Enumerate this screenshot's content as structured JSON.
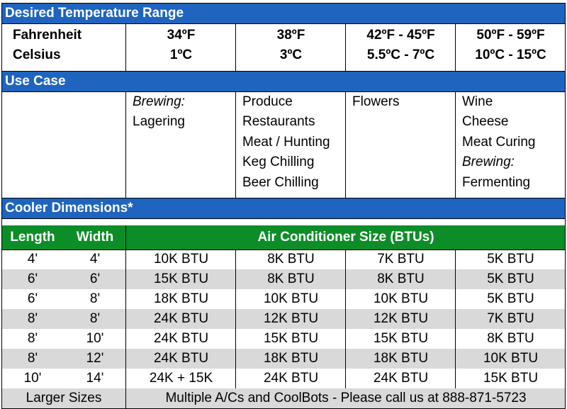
{
  "section_temp": "Desired Temperature Range",
  "temp": {
    "row_labels": [
      "Fahrenheit",
      "Celsius"
    ],
    "columns": [
      {
        "f": "34ºF",
        "c": "1ºC"
      },
      {
        "f": "38ºF",
        "c": "3ºC"
      },
      {
        "f": "42ºF - 45ºF",
        "c": "5.5ºC - 7ºC"
      },
      {
        "f": "50ºF - 59ºF",
        "c": "10ºC - 15ºC"
      }
    ]
  },
  "section_use": "Use Case",
  "use_cases": [
    [
      {
        "text": "Brewing:",
        "italic": true
      },
      {
        "text": "Lagering",
        "italic": false
      }
    ],
    [
      {
        "text": "Produce",
        "italic": false
      },
      {
        "text": "Restaurants",
        "italic": false
      },
      {
        "text": "Meat / Hunting",
        "italic": false
      },
      {
        "text": "Keg Chilling",
        "italic": false
      },
      {
        "text": "Beer Chilling",
        "italic": false
      }
    ],
    [
      {
        "text": "Flowers",
        "italic": false
      }
    ],
    [
      {
        "text": "Wine",
        "italic": false
      },
      {
        "text": "Cheese",
        "italic": false
      },
      {
        "text": "Meat Curing",
        "italic": false
      },
      {
        "text": "Brewing:",
        "italic": true
      },
      {
        "text": "Fermenting",
        "italic": false
      }
    ]
  ],
  "section_dims": "Cooler Dimensions*",
  "dims_header": {
    "length": "Length",
    "width": "Width",
    "ac": "Air Conditioner Size (BTUs)"
  },
  "dims_rows": [
    {
      "length": "4'",
      "width": "4'",
      "btu": [
        "10K BTU",
        "8K BTU",
        "7K BTU",
        "5K BTU"
      ]
    },
    {
      "length": "6'",
      "width": "6'",
      "btu": [
        "15K BTU",
        "8K BTU",
        "8K BTU",
        "5K BTU"
      ]
    },
    {
      "length": "6'",
      "width": "8'",
      "btu": [
        "18K BTU",
        "10K BTU",
        "10K BTU",
        "5K BTU"
      ]
    },
    {
      "length": "8'",
      "width": "8'",
      "btu": [
        "24K BTU",
        "12K BTU",
        "12K BTU",
        "7K BTU"
      ]
    },
    {
      "length": "8'",
      "width": "10'",
      "btu": [
        "24K BTU",
        "15K BTU",
        "15K BTU",
        "8K BTU"
      ]
    },
    {
      "length": "8'",
      "width": "12'",
      "btu": [
        "24K BTU",
        "18K BTU",
        "18K BTU",
        "10K BTU"
      ]
    },
    {
      "length": "10'",
      "width": "14'",
      "btu": [
        "24K + 15K",
        "24K BTU",
        "24K BTU",
        "15K BTU"
      ]
    }
  ],
  "footer": {
    "label": "Larger Sizes",
    "note": "Multiple A/Cs and CoolBots - Please call us at 888-871-5723"
  },
  "colors": {
    "blue_header": "#1f64bf",
    "green_header": "#0d8d27",
    "row_alt": "#d9d9d9"
  }
}
